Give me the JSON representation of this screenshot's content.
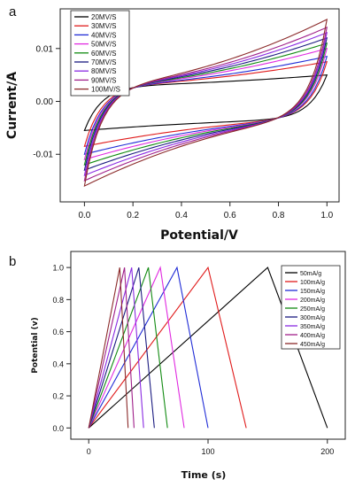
{
  "chart_data": [
    {
      "panel_label": "a",
      "type": "line",
      "xlabel": "Potential/V",
      "ylabel": "Current/A",
      "xlim": [
        -0.1,
        1.05
      ],
      "ylim": [
        -0.019,
        0.0175
      ],
      "xticks": [
        0.0,
        0.2,
        0.4,
        0.6,
        0.8,
        1.0
      ],
      "xtick_labels": [
        "0.0",
        "0.2",
        "0.4",
        "0.6",
        "0.8",
        "1.0"
      ],
      "yticks": [
        -0.01,
        0.0,
        0.01
      ],
      "ytick_labels": [
        "-0.01",
        "0.00",
        "0.01"
      ],
      "grid": false,
      "legend_position": "top-left",
      "series": [
        {
          "name": "20MV/S",
          "color": "#000000",
          "upper_end": 0.005,
          "lower_start": -0.0055
        },
        {
          "name": "30MV/S",
          "color": "#e01b1b",
          "upper_end": 0.0075,
          "lower_start": -0.0085
        },
        {
          "name": "40MV/S",
          "color": "#1f2bd6",
          "upper_end": 0.0085,
          "lower_start": -0.01
        },
        {
          "name": "50MV/S",
          "color": "#e02ae0",
          "upper_end": 0.01,
          "lower_start": -0.011
        },
        {
          "name": "60MV/S",
          "color": "#118a11",
          "upper_end": 0.011,
          "lower_start": -0.012
        },
        {
          "name": "70MV/S",
          "color": "#1a1a80",
          "upper_end": 0.012,
          "lower_start": -0.013
        },
        {
          "name": "80MV/S",
          "color": "#8a2be2",
          "upper_end": 0.013,
          "lower_start": -0.014
        },
        {
          "name": "90MV/S",
          "color": "#a0208a",
          "upper_end": 0.014,
          "lower_start": -0.015
        },
        {
          "name": "100MV/S",
          "color": "#8b2a2a",
          "upper_end": 0.0155,
          "lower_start": -0.016
        }
      ]
    },
    {
      "panel_label": "b",
      "type": "line",
      "xlabel": "Time (s)",
      "ylabel": "Potential (v)",
      "xlim": [
        -15,
        215
      ],
      "ylim": [
        -0.07,
        1.1
      ],
      "xticks": [
        0,
        100,
        200
      ],
      "xtick_labels": [
        "0",
        "100",
        "200"
      ],
      "yticks": [
        0.0,
        0.2,
        0.4,
        0.6,
        0.8,
        1.0
      ],
      "ytick_labels": [
        "0.0",
        "0.2",
        "0.4",
        "0.6",
        "0.8",
        "1.0"
      ],
      "grid": false,
      "legend_position": "top-right",
      "series": [
        {
          "name": "50mA/g",
          "color": "#000000",
          "x": [
            0,
            150,
            200
          ],
          "y": [
            0.0,
            1.0,
            0.0
          ]
        },
        {
          "name": "100mA/g",
          "color": "#e01b1b",
          "x": [
            0,
            100,
            132
          ],
          "y": [
            0.0,
            1.0,
            0.0
          ]
        },
        {
          "name": "150mA/g",
          "color": "#1f2bd6",
          "x": [
            0,
            74,
            100
          ],
          "y": [
            0.0,
            1.0,
            0.0
          ]
        },
        {
          "name": "200mA/g",
          "color": "#e02ae0",
          "x": [
            0,
            60,
            80
          ],
          "y": [
            0.0,
            1.0,
            0.0
          ]
        },
        {
          "name": "250mA/g",
          "color": "#118a11",
          "x": [
            0,
            50,
            66
          ],
          "y": [
            0.0,
            1.0,
            0.0
          ]
        },
        {
          "name": "300mA/g",
          "color": "#1a1a80",
          "x": [
            0,
            42,
            55
          ],
          "y": [
            0.0,
            1.0,
            0.0
          ]
        },
        {
          "name": "350mA/g",
          "color": "#8a2be2",
          "x": [
            0,
            36,
            46
          ],
          "y": [
            0.0,
            1.0,
            0.0
          ]
        },
        {
          "name": "400mA/g",
          "color": "#a0208a",
          "x": [
            0,
            30,
            38
          ],
          "y": [
            0.0,
            1.0,
            0.0
          ]
        },
        {
          "name": "450mA/g",
          "color": "#8b2a2a",
          "x": [
            0,
            26,
            33
          ],
          "y": [
            0.0,
            1.0,
            0.0
          ]
        }
      ]
    }
  ]
}
